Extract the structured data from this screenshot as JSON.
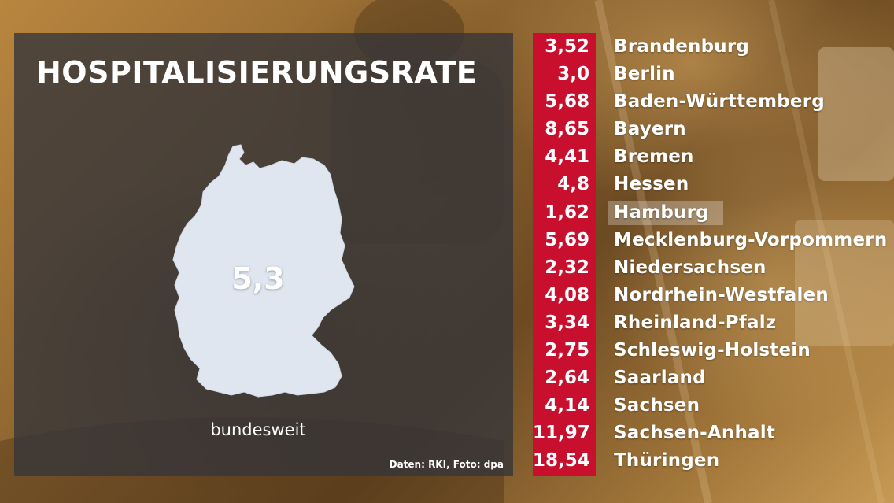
{
  "title": "HOSPITALISIERUNGSRATE",
  "national": {
    "value": "5,3",
    "label": "bundesweit"
  },
  "source": "Daten: RKI, Foto: dpa",
  "highlighted_state": "Hamburg",
  "colors": {
    "value_column": "#c8102e",
    "panel": "#34343a",
    "map": "#dfe6f0",
    "text": "#ffffff"
  },
  "states": [
    {
      "value": "3,52",
      "name": "Brandenburg"
    },
    {
      "value": "3,0",
      "name": "Berlin"
    },
    {
      "value": "5,68",
      "name": "Baden-Württemberg"
    },
    {
      "value": "8,65",
      "name": "Bayern"
    },
    {
      "value": "4,41",
      "name": "Bremen"
    },
    {
      "value": "4,8",
      "name": "Hessen"
    },
    {
      "value": "1,62",
      "name": "Hamburg"
    },
    {
      "value": "5,69",
      "name": "Mecklenburg-Vorpommern"
    },
    {
      "value": "2,32",
      "name": "Niedersachsen"
    },
    {
      "value": "4,08",
      "name": "Nordrhein-Westfalen"
    },
    {
      "value": "3,34",
      "name": "Rheinland-Pfalz"
    },
    {
      "value": "2,75",
      "name": "Schleswig-Holstein"
    },
    {
      "value": "2,64",
      "name": "Saarland"
    },
    {
      "value": "4,14",
      "name": "Sachsen"
    },
    {
      "value": "11,97",
      "name": "Sachsen-Anhalt"
    },
    {
      "value": "18,54",
      "name": "Thüringen"
    }
  ]
}
